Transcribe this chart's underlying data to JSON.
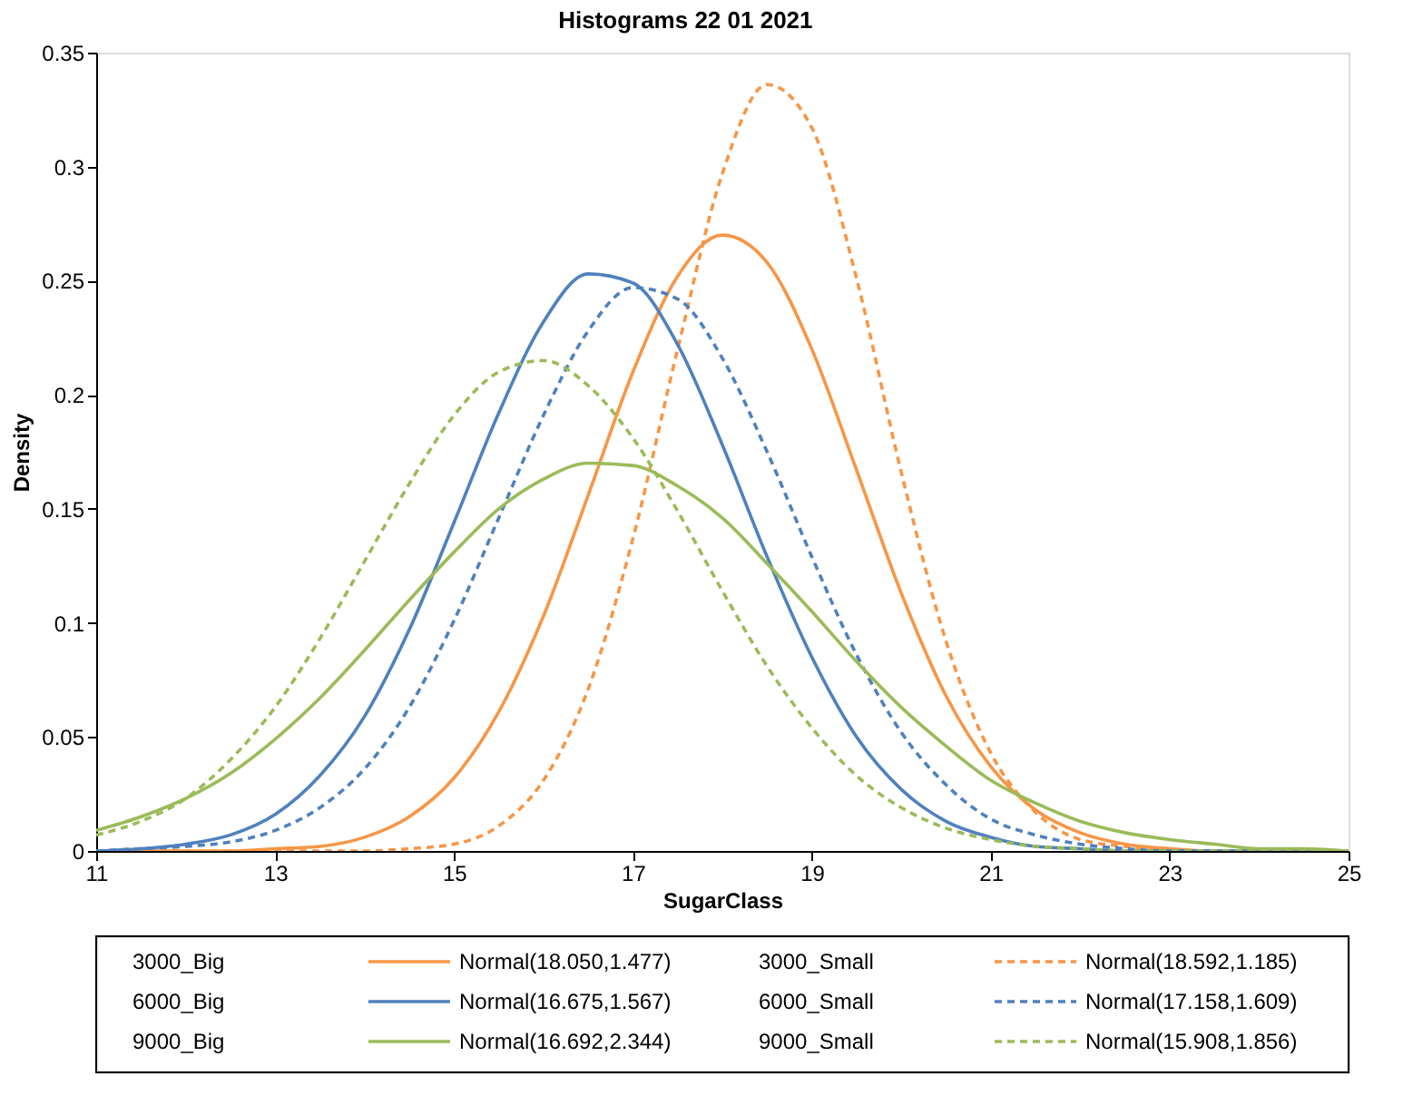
{
  "chart_data": {
    "type": "line",
    "title": "Histograms  22 01 2021",
    "xlabel": "SugarClass",
    "ylabel": "Density",
    "x": [
      11,
      11.5,
      12,
      12.5,
      13,
      13.5,
      14,
      14.5,
      15,
      15.5,
      16,
      16.5,
      17,
      17.5,
      18,
      18.5,
      19,
      19.5,
      20,
      20.5,
      21,
      21.5,
      22,
      22.5,
      23,
      23.5,
      24,
      24.5,
      25
    ],
    "xlim": [
      11,
      25
    ],
    "xticks": [
      11,
      13,
      15,
      17,
      19,
      21,
      23,
      25
    ],
    "ylim": [
      0,
      0.35
    ],
    "yticks": [
      0,
      0.05,
      0.1,
      0.15,
      0.2,
      0.25,
      0.3,
      0.35
    ],
    "grid": false,
    "legend": "bottom",
    "marker": "none",
    "annotations": [
      "3000_Big",
      "3000_Small",
      "6000_Big",
      "6000_Small",
      "9000_Big",
      "9000_Small"
    ],
    "series": [
      {
        "name": "Normal(18.050,1.477)",
        "color": "#f79646",
        "line_style": "solid",
        "values": [
          0,
          0,
          0,
          0,
          0.001,
          0.002,
          0.006,
          0.015,
          0.032,
          0.061,
          0.103,
          0.156,
          0.21,
          0.252,
          0.27,
          0.258,
          0.22,
          0.167,
          0.113,
          0.068,
          0.037,
          0.018,
          0.008,
          0.003,
          0.001,
          0,
          0,
          null,
          null
        ]
      },
      {
        "name": "Normal(18.592,1.185)",
        "color": "#f79646",
        "line_style": "dashed",
        "values": [
          0,
          0,
          0,
          0,
          0,
          0,
          0,
          0.001,
          0.003,
          0.011,
          0.031,
          0.071,
          0.137,
          0.22,
          0.297,
          0.336,
          0.317,
          0.251,
          0.166,
          0.092,
          0.043,
          0.017,
          0.005,
          0.002,
          0,
          0,
          0,
          null,
          null
        ]
      },
      {
        "name": "Normal(16.675,1.567)",
        "color": "#4f81bd",
        "line_style": "solid",
        "values": [
          0,
          0.001,
          0.003,
          0.007,
          0.016,
          0.033,
          0.059,
          0.097,
          0.144,
          0.192,
          0.232,
          0.253,
          0.249,
          0.222,
          0.178,
          0.129,
          0.085,
          0.05,
          0.027,
          0.013,
          0.006,
          0.002,
          0.001,
          0,
          0,
          0,
          0,
          0,
          0
        ]
      },
      {
        "name": "Normal(17.158,1.609)",
        "color": "#4f81bd",
        "line_style": "dashed",
        "values": [
          0,
          0.001,
          0.002,
          0.004,
          0.009,
          0.019,
          0.036,
          0.063,
          0.101,
          0.146,
          0.191,
          0.228,
          0.247,
          0.242,
          0.216,
          0.175,
          0.129,
          0.086,
          0.052,
          0.029,
          0.014,
          0.007,
          0.003,
          0.001,
          0,
          0,
          0,
          0,
          0
        ]
      },
      {
        "name": "Normal(16.692,2.344)",
        "color": "#9bbb59",
        "line_style": "solid",
        "values": [
          0.009,
          0.015,
          0.023,
          0.034,
          0.049,
          0.067,
          0.088,
          0.11,
          0.131,
          0.15,
          0.163,
          0.17,
          0.169,
          0.16,
          0.146,
          0.126,
          0.105,
          0.083,
          0.063,
          0.046,
          0.031,
          0.021,
          0.013,
          0.008,
          0.005,
          0.003,
          0.001,
          0.001,
          0
        ]
      },
      {
        "name": "Normal(15.908,1.856)",
        "color": "#9bbb59",
        "line_style": "dashed",
        "values": [
          0.007,
          0.013,
          0.023,
          0.04,
          0.063,
          0.093,
          0.127,
          0.161,
          0.191,
          0.21,
          0.215,
          0.204,
          0.181,
          0.149,
          0.114,
          0.081,
          0.054,
          0.033,
          0.019,
          0.01,
          0.005,
          0.002,
          0.001,
          0,
          0,
          0,
          0,
          0,
          0
        ]
      }
    ]
  }
}
